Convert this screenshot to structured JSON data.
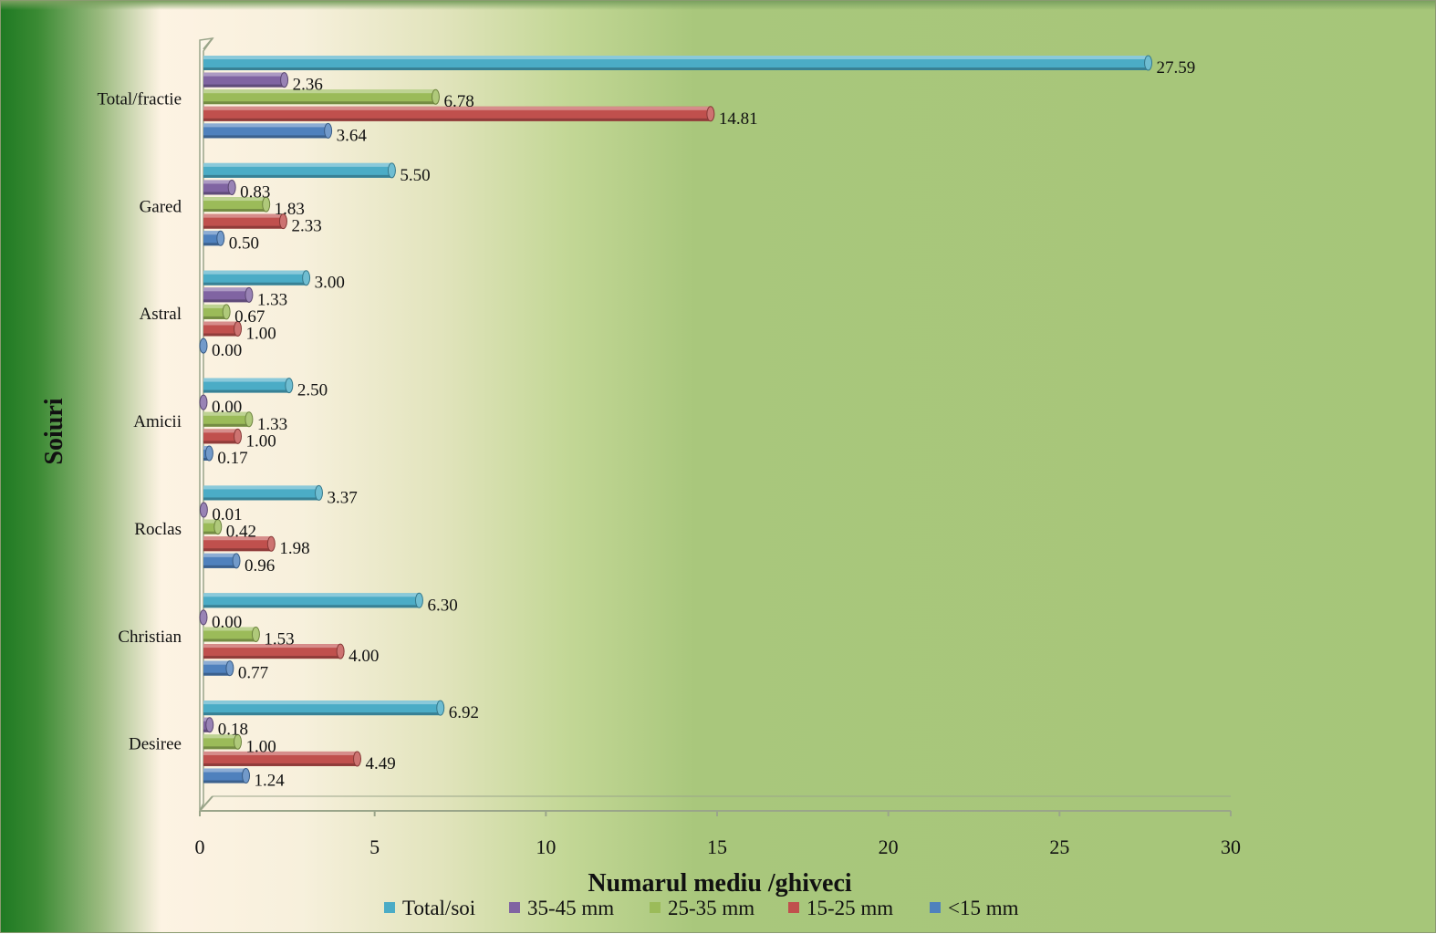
{
  "chart_data": {
    "type": "bar",
    "orientation": "horizontal",
    "xlabel": "Numarul mediu /ghiveci",
    "ylabel": "Soiuri",
    "xlim": [
      0,
      30
    ],
    "xticks": [
      0,
      5,
      10,
      15,
      20,
      25,
      30
    ],
    "categories": [
      "Total/fractie",
      "Gared",
      "Astral",
      "Amicii",
      "Roclas",
      "Christian",
      "Desiree"
    ],
    "series": [
      {
        "name": "Total/soi",
        "color": "#4bacc6",
        "values": [
          27.59,
          5.5,
          3.0,
          2.5,
          3.37,
          6.3,
          6.92
        ],
        "labels": [
          "27.59",
          "5.50",
          "3.00",
          "2.50",
          "3.37",
          "6.30",
          "6.92"
        ]
      },
      {
        "name": "35-45 mm",
        "color": "#8064a2",
        "values": [
          2.36,
          0.83,
          1.33,
          0.0,
          0.01,
          0.0,
          0.18
        ],
        "labels": [
          "2.36",
          "0.83",
          "1.33",
          "0.00",
          "0.01",
          "0.00",
          "0.18"
        ]
      },
      {
        "name": "25-35 mm",
        "color": "#9bbb59",
        "values": [
          6.78,
          1.83,
          0.67,
          1.33,
          0.42,
          1.53,
          1.0
        ],
        "labels": [
          "6.78",
          "1.83",
          "0.67",
          "1.33",
          "0.42",
          "1.53",
          "1.00"
        ]
      },
      {
        "name": "15-25 mm",
        "color": "#c0504d",
        "values": [
          14.81,
          2.33,
          1.0,
          1.0,
          1.98,
          4.0,
          4.49
        ],
        "labels": [
          "14.81",
          "2.33",
          "1.00",
          "1.00",
          "1.98",
          "4.00",
          "4.49"
        ]
      },
      {
        "name": "<15 mm",
        "color": "#4f81bd",
        "values": [
          3.64,
          0.5,
          0.0,
          0.17,
          0.96,
          0.77,
          1.24
        ],
        "labels": [
          "3.64",
          "0.50",
          "0.00",
          "0.17",
          "0.96",
          "0.77",
          "1.24"
        ]
      }
    ],
    "legend_position": "bottom",
    "grid": false
  }
}
